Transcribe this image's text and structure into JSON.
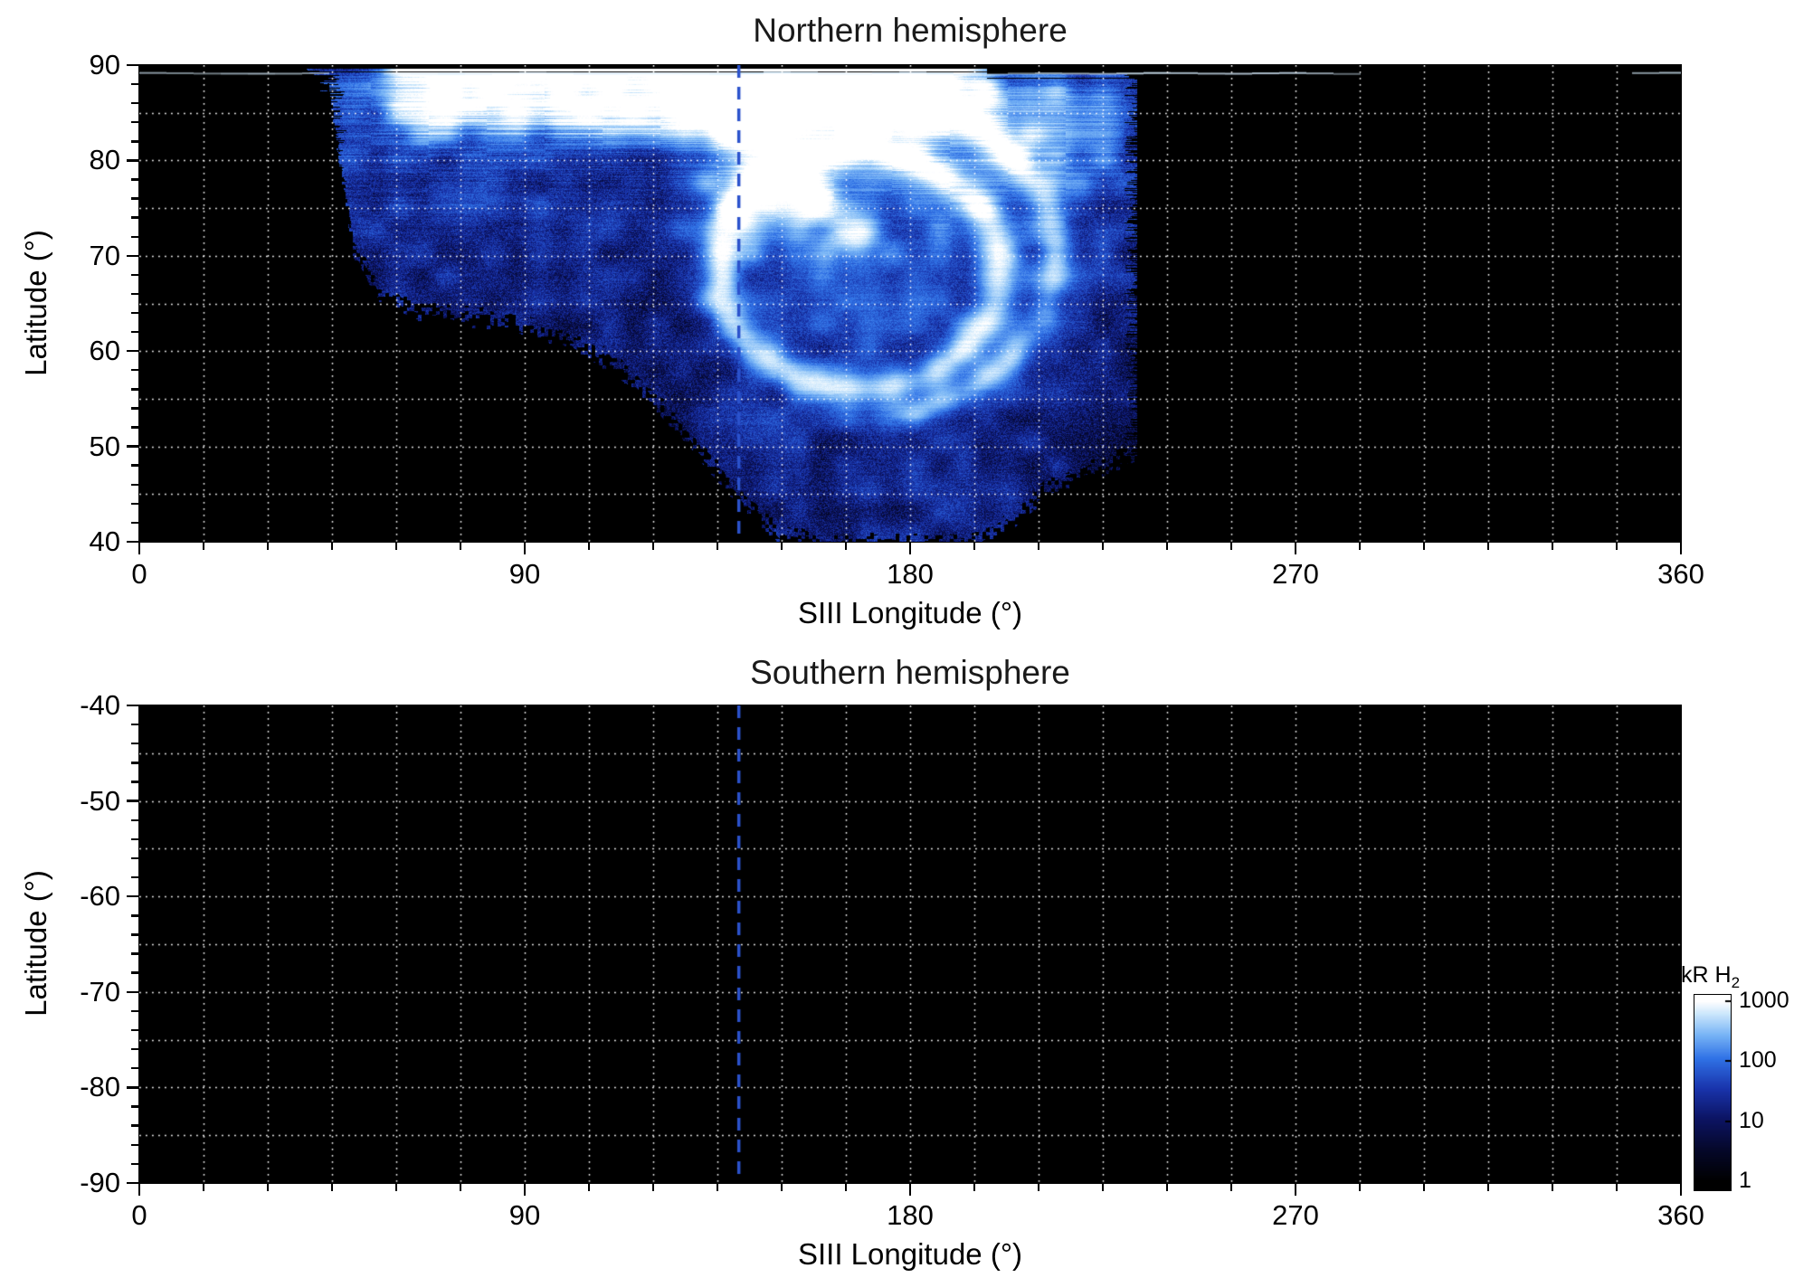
{
  "chart_data": [
    {
      "type": "heatmap",
      "panel": "north",
      "title": "Northern hemisphere",
      "xlabel": "SIII Longitude (°)",
      "ylabel": "Latitude (°)",
      "xlim": [
        0,
        360
      ],
      "ylim": [
        40,
        90
      ],
      "xticks": [
        0,
        90,
        180,
        270,
        360
      ],
      "xtick_labels": [
        "0",
        "90",
        "180",
        "270",
        "360"
      ],
      "yticks": [
        90,
        80,
        70,
        60,
        50,
        40
      ],
      "ytick_labels": [
        "90",
        "80",
        "70",
        "60",
        "50",
        "40"
      ],
      "x_minor_interval": 15,
      "y_minor_interval": 2,
      "grid": {
        "x_interval": 15,
        "y_interval": 5,
        "style": "dotted",
        "color": "#ffffff"
      },
      "background": "#000000",
      "dashed_line": {
        "lon": 140,
        "color": "#2b52cc",
        "style": "dashed"
      },
      "emission": {
        "unit": "kR H2",
        "intensity_scale": "log10, 1 to 1000 kR",
        "lon_extent": [
          44,
          233
        ],
        "lower_boundary": [
          [
            44,
            88
          ],
          [
            50,
            71
          ],
          [
            56,
            66
          ],
          [
            64,
            64.5
          ],
          [
            80,
            63.5
          ],
          [
            95,
            62
          ],
          [
            110,
            59
          ],
          [
            122,
            54
          ],
          [
            132,
            49
          ],
          [
            142,
            44
          ],
          [
            150,
            40.5
          ],
          [
            160,
            39.8
          ],
          [
            196,
            39.8
          ],
          [
            204,
            42.5
          ],
          [
            212,
            45.5
          ],
          [
            222,
            47.5
          ],
          [
            233,
            49.5
          ]
        ],
        "polar_cap": {
          "lat_start": 80,
          "lat_full": 86.5,
          "lon_start": 48,
          "lon_full": 70,
          "lon_fade_start": 183,
          "lon_fade_end": 206,
          "boost": 1.45
        },
        "main_oval": {
          "center_lon": 168,
          "center_lat": 68.5,
          "radius_lon": 33,
          "radius_lat": 12.5,
          "boost": 1.15
        },
        "outer_arc": {
          "center_lon": 168,
          "center_lat": 70,
          "radius_lon": 46,
          "radius_lat": 17,
          "boost": 0.95
        },
        "bright_spots": [
          [
            166,
            72
          ],
          [
            157,
            76
          ]
        ],
        "bright_column_lon": 144,
        "top_streak_lat": 89.1,
        "top_streak_lon_max": 284
      }
    },
    {
      "type": "heatmap",
      "panel": "south",
      "title": "Southern hemisphere",
      "xlabel": "SIII Longitude (°)",
      "ylabel": "Latitude (°)",
      "xlim": [
        0,
        360
      ],
      "ylim": [
        -90,
        -40
      ],
      "xticks": [
        0,
        90,
        180,
        270,
        360
      ],
      "xtick_labels": [
        "0",
        "90",
        "180",
        "270",
        "360"
      ],
      "yticks": [
        -40,
        -50,
        -60,
        -70,
        -80,
        -90
      ],
      "ytick_labels": [
        "-40",
        "-50",
        "-60",
        "-70",
        "-80",
        "-90"
      ],
      "x_minor_interval": 15,
      "y_minor_interval": 2,
      "grid": {
        "x_interval": 15,
        "y_interval": 5,
        "style": "dotted",
        "color": "#ffffff"
      },
      "background": "#000000",
      "dashed_line": {
        "lon": 140,
        "color": "#2b52cc",
        "style": "dashed"
      },
      "emission": null
    }
  ],
  "colorbar": {
    "label_main": "kR H",
    "label_sub": "2",
    "scale": "log",
    "range": [
      1,
      1000
    ],
    "ticks": [
      {
        "value": 1000,
        "label": "1000"
      },
      {
        "value": 100,
        "label": "100"
      },
      {
        "value": 10,
        "label": "10"
      },
      {
        "value": 1,
        "label": "1"
      }
    ],
    "stops": [
      [
        0.0,
        "#000000"
      ],
      [
        0.55,
        "#05082c"
      ],
      [
        1.05,
        "#0c1464"
      ],
      [
        1.55,
        "#1934ac"
      ],
      [
        2.05,
        "#3072e6"
      ],
      [
        2.45,
        "#7ab6f6"
      ],
      [
        2.8,
        "#cee8fc"
      ],
      [
        3.0,
        "#ffffff"
      ]
    ]
  }
}
